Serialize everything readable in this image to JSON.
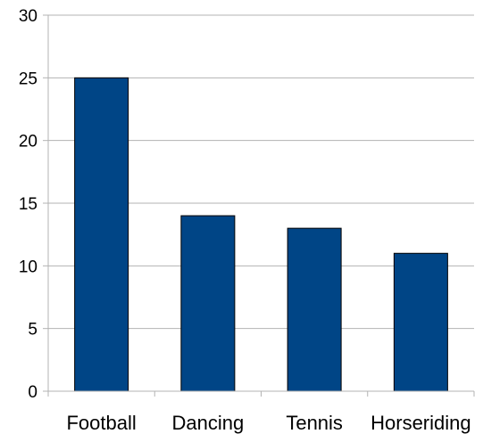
{
  "chart_data": {
    "type": "bar",
    "title": "",
    "xlabel": "",
    "ylabel": "",
    "categories": [
      "Football",
      "Dancing",
      "Tennis",
      "Horseriding"
    ],
    "values": [
      25,
      14,
      13,
      11
    ],
    "ylim": [
      0,
      30
    ],
    "yticks": [
      "0",
      "5",
      "10",
      "15",
      "20",
      "25",
      "30"
    ],
    "grid": true,
    "legend": "none",
    "colors": {
      "bar_fill": "#004586",
      "bar_stroke": "#000000",
      "grid": "#b3b3b3",
      "axis": "#b3b3b3",
      "background": "#ffffff"
    }
  }
}
